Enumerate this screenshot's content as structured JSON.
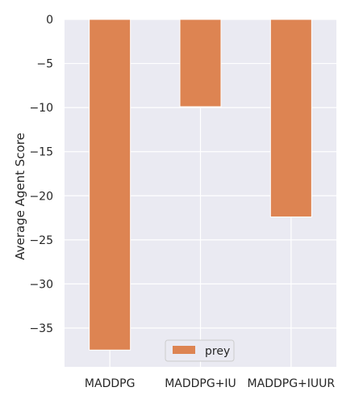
{
  "chart_data": {
    "type": "bar",
    "categories": [
      "MADDPG",
      "MADDPG+IU",
      "MADDPG+IUUR"
    ],
    "series": [
      {
        "name": "prey",
        "values": [
          -37.5,
          -9.9,
          -22.4
        ],
        "color": "#dd8452"
      }
    ],
    "xlabel": "",
    "ylabel": "Average Agent Score",
    "ylim": [
      -39.4,
      0
    ],
    "yticks": [
      0,
      -5,
      -10,
      -15,
      -20,
      -25,
      -30,
      -35
    ],
    "ytick_labels": [
      "0",
      "−5",
      "−10",
      "−15",
      "−20",
      "−25",
      "−30",
      "−35"
    ],
    "grid": true,
    "legend_position": "bottom-center",
    "style": {
      "background": "#eaeaf2",
      "grid_color": "#ffffff"
    }
  }
}
